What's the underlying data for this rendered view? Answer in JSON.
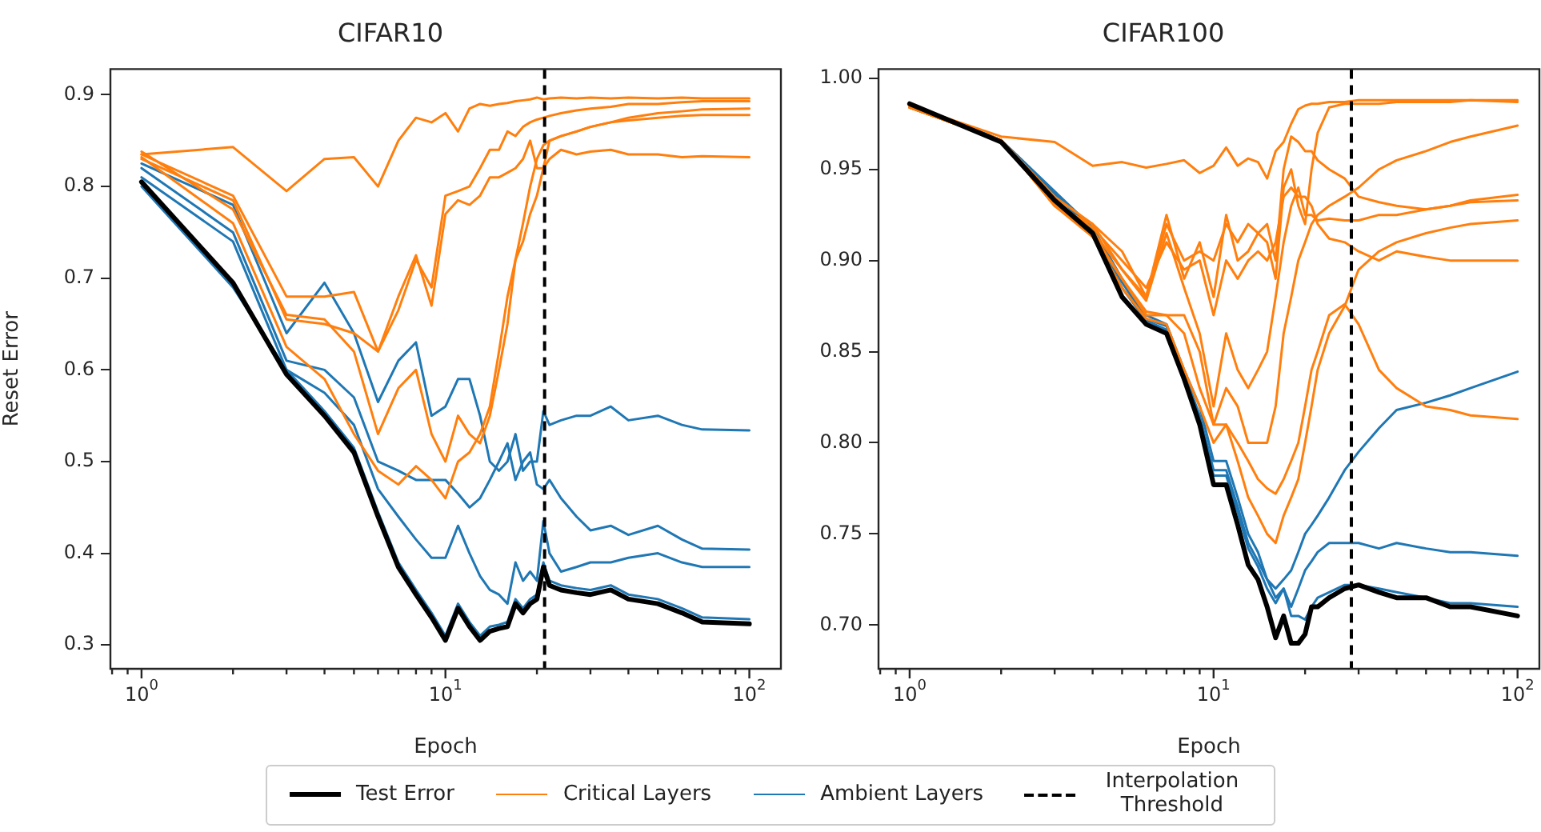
{
  "chart_data": [
    {
      "type": "line",
      "title": "CIFAR10",
      "xlabel": "Epoch",
      "ylabel": "Reset Error",
      "log": "x",
      "grid": false,
      "legend": "bottom",
      "marker": "none",
      "line_style": "solid",
      "x": [
        1,
        2,
        3,
        4,
        5,
        6,
        7,
        8,
        9,
        10,
        11,
        12,
        13,
        14,
        15,
        16,
        17,
        18,
        19,
        20,
        21,
        22,
        24,
        27,
        30,
        35,
        40,
        50,
        60,
        70,
        100
      ],
      "xlim": [
        0.79,
        127
      ],
      "xticks": [
        {
          "value": 0.8,
          "label": null
        },
        {
          "value": 0.9,
          "label": null
        },
        {
          "value": 1,
          "label": "10$^{0}$"
        },
        {
          "value": 2,
          "label": null
        },
        {
          "value": 3,
          "label": null
        },
        {
          "value": 4,
          "label": null
        },
        {
          "value": 5,
          "label": null
        },
        {
          "value": 6,
          "label": null
        },
        {
          "value": 7,
          "label": null
        },
        {
          "value": 8,
          "label": null
        },
        {
          "value": 9,
          "label": null
        },
        {
          "value": 10,
          "label": "10$^{1}$"
        },
        {
          "value": 20,
          "label": null
        },
        {
          "value": 30,
          "label": null
        },
        {
          "value": 40,
          "label": null
        },
        {
          "value": 50,
          "label": null
        },
        {
          "value": 60,
          "label": null
        },
        {
          "value": 70,
          "label": null
        },
        {
          "value": 80,
          "label": null
        },
        {
          "value": 90,
          "label": null
        },
        {
          "value": 100,
          "label": "10$^{2}$"
        }
      ],
      "ylim": [
        0.274,
        0.928
      ],
      "yticks": [
        0.3,
        0.4,
        0.5,
        0.6,
        0.7,
        0.8,
        0.9
      ],
      "ref_lines": [
        {
          "axis": "x",
          "value": 21.2,
          "label": "Interpolation Threshold",
          "color": "#000000",
          "line_style": "dashed"
        }
      ],
      "series": [
        {
          "name": "Test Error",
          "color": "#000000",
          "values": [
            0.805,
            0.695,
            0.595,
            0.55,
            0.51,
            0.44,
            0.385,
            0.355,
            0.33,
            0.305,
            0.34,
            0.32,
            0.305,
            0.315,
            0.318,
            0.32,
            0.345,
            0.335,
            0.345,
            0.35,
            0.385,
            0.365,
            0.36,
            0.357,
            0.355,
            0.36,
            0.35,
            0.345,
            0.335,
            0.325,
            0.323
          ]
        },
        {
          "name": "Critical Layers",
          "color": "#ff7f0e",
          "values": [
            0.835,
            0.843,
            0.795,
            0.83,
            0.832,
            0.8,
            0.85,
            0.875,
            0.87,
            0.88,
            0.86,
            0.885,
            0.89,
            0.888,
            0.89,
            0.891,
            0.893,
            0.894,
            0.895,
            0.897,
            0.895,
            0.896,
            0.897,
            0.896,
            0.897,
            0.896,
            0.897,
            0.896,
            0.897,
            0.896,
            0.896
          ]
        },
        {
          "color": "#ff7f0e",
          "values": [
            0.835,
            0.79,
            0.68,
            0.68,
            0.685,
            0.62,
            0.665,
            0.72,
            0.69,
            0.79,
            0.795,
            0.8,
            0.82,
            0.84,
            0.84,
            0.86,
            0.855,
            0.865,
            0.87,
            0.873,
            0.875,
            0.877,
            0.88,
            0.883,
            0.885,
            0.887,
            0.89,
            0.89,
            0.892,
            0.893,
            0.893
          ]
        },
        {
          "color": "#ff7f0e",
          "values": [
            0.83,
            0.785,
            0.655,
            0.65,
            0.64,
            0.62,
            0.68,
            0.725,
            0.67,
            0.77,
            0.785,
            0.78,
            0.79,
            0.81,
            0.81,
            0.815,
            0.82,
            0.83,
            0.85,
            0.82,
            0.82,
            0.85,
            0.855,
            0.86,
            0.865,
            0.87,
            0.875,
            0.88,
            0.882,
            0.884,
            0.885
          ]
        },
        {
          "color": "#ff7f0e",
          "values": [
            0.838,
            0.775,
            0.66,
            0.655,
            0.62,
            0.53,
            0.58,
            0.6,
            0.53,
            0.5,
            0.55,
            0.53,
            0.52,
            0.55,
            0.6,
            0.65,
            0.72,
            0.76,
            0.8,
            0.83,
            0.845,
            0.85,
            0.855,
            0.86,
            0.865,
            0.87,
            0.872,
            0.875,
            0.877,
            0.878,
            0.878
          ]
        },
        {
          "color": "#ff7f0e",
          "values": [
            0.832,
            0.76,
            0.625,
            0.59,
            0.53,
            0.49,
            0.475,
            0.495,
            0.48,
            0.46,
            0.5,
            0.51,
            0.53,
            0.56,
            0.62,
            0.68,
            0.72,
            0.74,
            0.77,
            0.79,
            0.82,
            0.83,
            0.84,
            0.835,
            0.838,
            0.84,
            0.835,
            0.835,
            0.832,
            0.833,
            0.832
          ]
        },
        {
          "name": "Ambient Layers",
          "color": "#1f77b4",
          "values": [
            0.825,
            0.78,
            0.64,
            0.695,
            0.64,
            0.565,
            0.61,
            0.63,
            0.55,
            0.56,
            0.59,
            0.59,
            0.55,
            0.5,
            0.49,
            0.5,
            0.53,
            0.49,
            0.5,
            0.5,
            0.555,
            0.54,
            0.545,
            0.55,
            0.55,
            0.56,
            0.545,
            0.55,
            0.54,
            0.535,
            0.534
          ]
        },
        {
          "color": "#1f77b4",
          "values": [
            0.82,
            0.75,
            0.61,
            0.6,
            0.57,
            0.5,
            0.49,
            0.48,
            0.48,
            0.48,
            0.465,
            0.45,
            0.46,
            0.48,
            0.5,
            0.52,
            0.48,
            0.5,
            0.51,
            0.475,
            0.47,
            0.48,
            0.46,
            0.44,
            0.425,
            0.43,
            0.42,
            0.43,
            0.415,
            0.405,
            0.404
          ]
        },
        {
          "color": "#1f77b4",
          "values": [
            0.81,
            0.74,
            0.6,
            0.575,
            0.54,
            0.47,
            0.44,
            0.415,
            0.395,
            0.395,
            0.43,
            0.4,
            0.375,
            0.36,
            0.355,
            0.345,
            0.39,
            0.37,
            0.38,
            0.37,
            0.435,
            0.4,
            0.38,
            0.385,
            0.39,
            0.39,
            0.395,
            0.4,
            0.39,
            0.385,
            0.385
          ]
        },
        {
          "color": "#1f77b4",
          "values": [
            0.8,
            0.69,
            0.6,
            0.555,
            0.515,
            0.445,
            0.39,
            0.36,
            0.335,
            0.31,
            0.345,
            0.325,
            0.31,
            0.32,
            0.322,
            0.325,
            0.35,
            0.34,
            0.35,
            0.355,
            0.39,
            0.37,
            0.365,
            0.362,
            0.36,
            0.365,
            0.355,
            0.35,
            0.34,
            0.33,
            0.328
          ]
        }
      ]
    },
    {
      "type": "line",
      "title": "CIFAR100",
      "xlabel": "Epoch",
      "log": "x",
      "grid": false,
      "marker": "none",
      "line_style": "solid",
      "x": [
        1,
        2,
        3,
        4,
        5,
        6,
        7,
        8,
        9,
        10,
        11,
        12,
        13,
        14,
        15,
        16,
        17,
        18,
        19,
        20,
        21,
        22,
        24,
        27,
        30,
        35,
        40,
        50,
        60,
        70,
        100
      ],
      "xlim": [
        0.79,
        118
      ],
      "xticks": [
        {
          "value": 0.8,
          "label": null
        },
        {
          "value": 0.9,
          "label": null
        },
        {
          "value": 1,
          "label": "10$^{0}$"
        },
        {
          "value": 2,
          "label": null
        },
        {
          "value": 3,
          "label": null
        },
        {
          "value": 4,
          "label": null
        },
        {
          "value": 5,
          "label": null
        },
        {
          "value": 6,
          "label": null
        },
        {
          "value": 7,
          "label": null
        },
        {
          "value": 8,
          "label": null
        },
        {
          "value": 9,
          "label": null
        },
        {
          "value": 10,
          "label": "10$^{1}$"
        },
        {
          "value": 20,
          "label": null
        },
        {
          "value": 30,
          "label": null
        },
        {
          "value": 40,
          "label": null
        },
        {
          "value": 50,
          "label": null
        },
        {
          "value": 60,
          "label": null
        },
        {
          "value": 70,
          "label": null
        },
        {
          "value": 80,
          "label": null
        },
        {
          "value": 90,
          "label": null
        },
        {
          "value": 100,
          "label": "10$^{2}$"
        }
      ],
      "ylim": [
        0.676,
        1.005
      ],
      "yticks": [
        {
          "value": 0.7,
          "label": "0.70"
        },
        {
          "value": 0.75,
          "label": "0.75"
        },
        {
          "value": 0.8,
          "label": "0.80"
        },
        {
          "value": 0.85,
          "label": "0.85"
        },
        {
          "value": 0.9,
          "label": "0.90"
        },
        {
          "value": 0.95,
          "label": "0.95"
        },
        {
          "value": 1,
          "label": "1.00"
        }
      ],
      "ref_lines": [
        {
          "axis": "x",
          "value": 28.4,
          "color": "#000000",
          "line_style": "dashed"
        }
      ],
      "series": [
        {
          "color": "#000000",
          "values": [
            0.986,
            0.965,
            0.933,
            0.915,
            0.88,
            0.865,
            0.86,
            0.835,
            0.81,
            0.777,
            0.777,
            0.755,
            0.733,
            0.725,
            0.71,
            0.693,
            0.705,
            0.69,
            0.69,
            0.695,
            0.71,
            0.71,
            0.715,
            0.72,
            0.722,
            0.718,
            0.715,
            0.715,
            0.71,
            0.71,
            0.705
          ]
        },
        {
          "color": "#ff7f0e",
          "values": [
            0.985,
            0.968,
            0.965,
            0.952,
            0.954,
            0.951,
            0.953,
            0.955,
            0.948,
            0.952,
            0.962,
            0.952,
            0.956,
            0.954,
            0.945,
            0.96,
            0.965,
            0.975,
            0.983,
            0.985,
            0.986,
            0.986,
            0.987,
            0.987,
            0.988,
            0.988,
            0.988,
            0.988,
            0.988,
            0.988,
            0.988
          ]
        },
        {
          "color": "#ff7f0e",
          "values": [
            0.984,
            0.966,
            0.93,
            0.92,
            0.895,
            0.88,
            0.925,
            0.89,
            0.91,
            0.88,
            0.925,
            0.9,
            0.905,
            0.915,
            0.91,
            0.89,
            0.94,
            0.95,
            0.93,
            0.92,
            0.95,
            0.97,
            0.984,
            0.986,
            0.986,
            0.986,
            0.987,
            0.987,
            0.987,
            0.988,
            0.987
          ]
        },
        {
          "color": "#ff7f0e",
          "values": [
            0.984,
            0.966,
            0.93,
            0.915,
            0.89,
            0.87,
            0.87,
            0.87,
            0.85,
            0.81,
            0.83,
            0.82,
            0.8,
            0.8,
            0.8,
            0.82,
            0.86,
            0.88,
            0.9,
            0.91,
            0.92,
            0.925,
            0.93,
            0.935,
            0.94,
            0.95,
            0.955,
            0.96,
            0.965,
            0.968,
            0.974
          ]
        },
        {
          "color": "#ff7f0e",
          "values": [
            0.984,
            0.966,
            0.935,
            0.92,
            0.905,
            0.88,
            0.92,
            0.9,
            0.905,
            0.9,
            0.92,
            0.91,
            0.92,
            0.915,
            0.92,
            0.9,
            0.95,
            0.968,
            0.965,
            0.96,
            0.96,
            0.955,
            0.95,
            0.945,
            0.935,
            0.932,
            0.93,
            0.928,
            0.93,
            0.933,
            0.936
          ]
        },
        {
          "color": "#ff7f0e",
          "values": [
            0.984,
            0.966,
            0.93,
            0.916,
            0.895,
            0.878,
            0.915,
            0.885,
            0.86,
            0.82,
            0.86,
            0.84,
            0.83,
            0.84,
            0.85,
            0.88,
            0.91,
            0.93,
            0.94,
            0.925,
            0.925,
            0.922,
            0.923,
            0.922,
            0.922,
            0.925,
            0.925,
            0.928,
            0.93,
            0.932,
            0.933
          ]
        },
        {
          "color": "#ff7f0e",
          "values": [
            0.984,
            0.966,
            0.932,
            0.918,
            0.9,
            0.885,
            0.91,
            0.895,
            0.9,
            0.87,
            0.9,
            0.89,
            0.9,
            0.905,
            0.9,
            0.91,
            0.935,
            0.94,
            0.935,
            0.935,
            0.93,
            0.92,
            0.912,
            0.91,
            0.905,
            0.9,
            0.905,
            0.902,
            0.9,
            0.9,
            0.9
          ]
        },
        {
          "color": "#ff7f0e",
          "values": [
            0.984,
            0.966,
            0.93,
            0.913,
            0.885,
            0.868,
            0.865,
            0.84,
            0.82,
            0.8,
            0.81,
            0.79,
            0.77,
            0.76,
            0.75,
            0.745,
            0.76,
            0.77,
            0.78,
            0.8,
            0.82,
            0.84,
            0.86,
            0.875,
            0.895,
            0.905,
            0.91,
            0.915,
            0.918,
            0.92,
            0.922
          ]
        },
        {
          "color": "#ff7f0e",
          "values": [
            0.984,
            0.966,
            0.932,
            0.914,
            0.89,
            0.872,
            0.87,
            0.86,
            0.83,
            0.81,
            0.81,
            0.8,
            0.79,
            0.78,
            0.775,
            0.772,
            0.78,
            0.79,
            0.8,
            0.82,
            0.84,
            0.85,
            0.87,
            0.876,
            0.865,
            0.84,
            0.83,
            0.82,
            0.818,
            0.815,
            0.813
          ]
        },
        {
          "color": "#1f77b4",
          "values": [
            0.986,
            0.966,
            null,
            0.918,
            0.89,
            0.87,
            0.865,
            0.84,
            0.82,
            0.79,
            0.79,
            0.77,
            0.75,
            0.74,
            0.725,
            0.72,
            0.725,
            0.73,
            0.74,
            0.75,
            0.755,
            0.76,
            0.77,
            0.785,
            0.795,
            0.808,
            0.818,
            0.822,
            0.826,
            0.83,
            0.839
          ]
        },
        {
          "color": "#1f77b4",
          "values": [
            0.986,
            0.966,
            null,
            0.917,
            0.888,
            0.868,
            0.864,
            0.838,
            0.815,
            0.785,
            0.785,
            0.765,
            0.745,
            0.735,
            0.725,
            0.715,
            0.72,
            0.71,
            0.72,
            0.73,
            0.735,
            0.74,
            0.745,
            0.745,
            0.745,
            0.742,
            0.745,
            0.742,
            0.74,
            0.74,
            0.738
          ]
        },
        {
          "color": "#1f77b4",
          "values": [
            0.986,
            0.966,
            null,
            0.916,
            0.885,
            0.867,
            0.862,
            0.836,
            0.812,
            0.782,
            0.782,
            0.762,
            0.742,
            0.732,
            0.72,
            0.712,
            0.72,
            0.705,
            0.705,
            0.703,
            0.71,
            0.715,
            0.718,
            0.722,
            0.722,
            0.72,
            0.718,
            0.715,
            0.712,
            0.712,
            0.71
          ]
        }
      ]
    }
  ]
}
